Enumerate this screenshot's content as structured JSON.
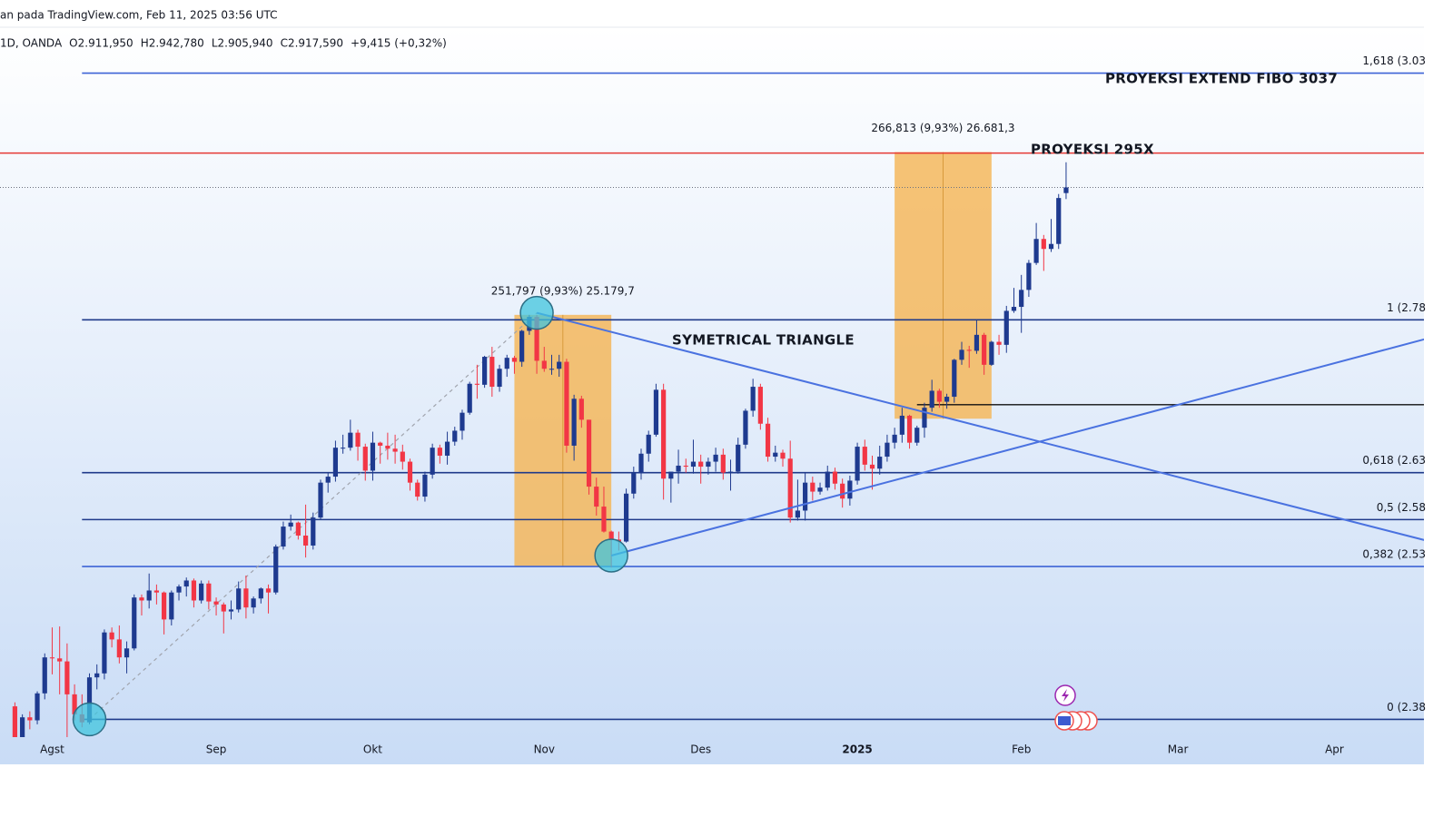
{
  "chart_data": {
    "type": "candlestick",
    "source": "an pada TradingView.com, Feb 11, 2025 03:56 UTC",
    "legend": [
      "1D, OANDA",
      "O2.911,950",
      "H2.942,780",
      "L2.905,940",
      "C2.917,590",
      "+9,415 (+0,32%)"
    ],
    "up_color": "#1e3a8f",
    "down_color": "#f23645",
    "xlim": [
      -2,
      189
    ],
    "ylim": [
      2369,
      3078
    ],
    "xticks": [
      {
        "value": 5,
        "label": "Agst"
      },
      {
        "value": 27,
        "label": "Sep"
      },
      {
        "value": 48,
        "label": "Okt"
      },
      {
        "value": 71,
        "label": "Nov"
      },
      {
        "value": 92,
        "label": "Des"
      },
      {
        "value": 113,
        "label": "2025"
      },
      {
        "value": 135,
        "label": "Feb"
      },
      {
        "value": 156,
        "label": "Mar"
      },
      {
        "value": 177,
        "label": "Apr"
      }
    ],
    "ohlc": [
      [
        2398,
        2402,
        2353,
        2364
      ],
      [
        2364,
        2390,
        2362,
        2387
      ],
      [
        2387,
        2393,
        2375,
        2384
      ],
      [
        2384,
        2413,
        2380,
        2411
      ],
      [
        2411,
        2451,
        2405,
        2447
      ],
      [
        2447,
        2477,
        2430,
        2446
      ],
      [
        2446,
        2478,
        2410,
        2443
      ],
      [
        2443,
        2461,
        2364,
        2410
      ],
      [
        2410,
        2420,
        2384,
        2390
      ],
      [
        2390,
        2410,
        2377,
        2382
      ],
      [
        2382,
        2431,
        2380,
        2427
      ],
      [
        2427,
        2440,
        2415,
        2431
      ],
      [
        2431,
        2475,
        2425,
        2472
      ],
      [
        2472,
        2477,
        2457,
        2465
      ],
      [
        2465,
        2479,
        2441,
        2447
      ],
      [
        2447,
        2463,
        2431,
        2456
      ],
      [
        2456,
        2510,
        2454,
        2507
      ],
      [
        2507,
        2510,
        2489,
        2504
      ],
      [
        2504,
        2531,
        2496,
        2514
      ],
      [
        2514,
        2520,
        2500,
        2512
      ],
      [
        2512,
        2513,
        2470,
        2485
      ],
      [
        2485,
        2514,
        2479,
        2512
      ],
      [
        2512,
        2520,
        2504,
        2518
      ],
      [
        2518,
        2527,
        2508,
        2524
      ],
      [
        2524,
        2526,
        2497,
        2504
      ],
      [
        2504,
        2524,
        2501,
        2521
      ],
      [
        2521,
        2524,
        2495,
        2503
      ],
      [
        2503,
        2507,
        2489,
        2500
      ],
      [
        2500,
        2502,
        2471,
        2493
      ],
      [
        2493,
        2504,
        2485,
        2495
      ],
      [
        2495,
        2523,
        2492,
        2516
      ],
      [
        2516,
        2529,
        2486,
        2497
      ],
      [
        2497,
        2508,
        2491,
        2506
      ],
      [
        2506,
        2517,
        2501,
        2516
      ],
      [
        2516,
        2520,
        2491,
        2512
      ],
      [
        2512,
        2560,
        2510,
        2558
      ],
      [
        2558,
        2583,
        2555,
        2578
      ],
      [
        2578,
        2590,
        2574,
        2582
      ],
      [
        2582,
        2583,
        2565,
        2569
      ],
      [
        2569,
        2600,
        2547,
        2559
      ],
      [
        2559,
        2592,
        2555,
        2587
      ],
      [
        2587,
        2625,
        2585,
        2622
      ],
      [
        2622,
        2632,
        2612,
        2628
      ],
      [
        2628,
        2664,
        2623,
        2657
      ],
      [
        2657,
        2670,
        2651,
        2657
      ],
      [
        2657,
        2685,
        2654,
        2672
      ],
      [
        2672,
        2675,
        2644,
        2658
      ],
      [
        2658,
        2661,
        2624,
        2634
      ],
      [
        2634,
        2673,
        2624,
        2662
      ],
      [
        2662,
        2663,
        2641,
        2659
      ],
      [
        2659,
        2672,
        2645,
        2656
      ],
      [
        2656,
        2670,
        2641,
        2653
      ],
      [
        2653,
        2660,
        2635,
        2643
      ],
      [
        2643,
        2646,
        2614,
        2622
      ],
      [
        2622,
        2625,
        2604,
        2608
      ],
      [
        2608,
        2633,
        2603,
        2630
      ],
      [
        2630,
        2661,
        2626,
        2657
      ],
      [
        2657,
        2660,
        2641,
        2649
      ],
      [
        2649,
        2673,
        2640,
        2663
      ],
      [
        2663,
        2678,
        2659,
        2674
      ],
      [
        2674,
        2695,
        2665,
        2692
      ],
      [
        2692,
        2723,
        2690,
        2721
      ],
      [
        2721,
        2740,
        2706,
        2720
      ],
      [
        2720,
        2749,
        2717,
        2748
      ],
      [
        2748,
        2758,
        2708,
        2718
      ],
      [
        2718,
        2740,
        2713,
        2736
      ],
      [
        2736,
        2750,
        2728,
        2747
      ],
      [
        2747,
        2749,
        2731,
        2743
      ],
      [
        2743,
        2775,
        2738,
        2774
      ],
      [
        2774,
        2790,
        2770,
        2788
      ],
      [
        2788,
        2790,
        2731,
        2744
      ],
      [
        2744,
        2758,
        2733,
        2736
      ],
      [
        2736,
        2750,
        2730,
        2736
      ],
      [
        2736,
        2750,
        2728,
        2743
      ],
      [
        2743,
        2746,
        2652,
        2659
      ],
      [
        2659,
        2710,
        2644,
        2706
      ],
      [
        2706,
        2709,
        2677,
        2685
      ],
      [
        2685,
        2685,
        2610,
        2618
      ],
      [
        2618,
        2627,
        2589,
        2598
      ],
      [
        2598,
        2618,
        2572,
        2573
      ],
      [
        2573,
        2574,
        2537,
        2565
      ],
      [
        2565,
        2573,
        2554,
        2563
      ],
      [
        2563,
        2616,
        2562,
        2611
      ],
      [
        2611,
        2638,
        2606,
        2632
      ],
      [
        2632,
        2656,
        2625,
        2651
      ],
      [
        2651,
        2674,
        2643,
        2670
      ],
      [
        2670,
        2721,
        2668,
        2715
      ],
      [
        2715,
        2721,
        2605,
        2626
      ],
      [
        2626,
        2632,
        2602,
        2633
      ],
      [
        2633,
        2655,
        2621,
        2639
      ],
      [
        2639,
        2646,
        2632,
        2638
      ],
      [
        2638,
        2665,
        2631,
        2643
      ],
      [
        2643,
        2650,
        2621,
        2638
      ],
      [
        2638,
        2647,
        2630,
        2643
      ],
      [
        2643,
        2657,
        2633,
        2650
      ],
      [
        2650,
        2656,
        2625,
        2632
      ],
      [
        2632,
        2645,
        2614,
        2633
      ],
      [
        2633,
        2667,
        2631,
        2660
      ],
      [
        2660,
        2696,
        2656,
        2694
      ],
      [
        2694,
        2726,
        2688,
        2718
      ],
      [
        2718,
        2721,
        2675,
        2681
      ],
      [
        2681,
        2687,
        2643,
        2648
      ],
      [
        2648,
        2659,
        2643,
        2652
      ],
      [
        2652,
        2655,
        2638,
        2646
      ],
      [
        2646,
        2664,
        2582,
        2587
      ],
      [
        2587,
        2625,
        2584,
        2594
      ],
      [
        2594,
        2632,
        2584,
        2622
      ],
      [
        2622,
        2628,
        2604,
        2613
      ],
      [
        2613,
        2622,
        2610,
        2617
      ],
      [
        2617,
        2639,
        2614,
        2633
      ],
      [
        2633,
        2637,
        2615,
        2621
      ],
      [
        2621,
        2626,
        2597,
        2606
      ],
      [
        2606,
        2629,
        2599,
        2624
      ],
      [
        2624,
        2662,
        2620,
        2658
      ],
      [
        2658,
        2665,
        2634,
        2640
      ],
      [
        2640,
        2649,
        2615,
        2636
      ],
      [
        2636,
        2659,
        2630,
        2648
      ],
      [
        2648,
        2670,
        2643,
        2662
      ],
      [
        2662,
        2677,
        2656,
        2670
      ],
      [
        2670,
        2697,
        2662,
        2689
      ],
      [
        2689,
        2690,
        2656,
        2662
      ],
      [
        2662,
        2679,
        2659,
        2677
      ],
      [
        2677,
        2702,
        2667,
        2697
      ],
      [
        2697,
        2725,
        2693,
        2714
      ],
      [
        2714,
        2716,
        2697,
        2703
      ],
      [
        2703,
        2711,
        2696,
        2708
      ],
      [
        2708,
        2746,
        2702,
        2745
      ],
      [
        2745,
        2763,
        2740,
        2755
      ],
      [
        2755,
        2759,
        2737,
        2754
      ],
      [
        2754,
        2785,
        2751,
        2770
      ],
      [
        2770,
        2772,
        2730,
        2740
      ],
      [
        2740,
        2764,
        2739,
        2763
      ],
      [
        2763,
        2770,
        2750,
        2760
      ],
      [
        2760,
        2799,
        2752,
        2794
      ],
      [
        2794,
        2817,
        2792,
        2798
      ],
      [
        2798,
        2830,
        2772,
        2815
      ],
      [
        2815,
        2845,
        2808,
        2842
      ],
      [
        2842,
        2882,
        2840,
        2866
      ],
      [
        2866,
        2870,
        2834,
        2856
      ],
      [
        2856,
        2886,
        2853,
        2861
      ],
      [
        2861,
        2911,
        2856,
        2907
      ],
      [
        2911.95,
        2942.78,
        2905.94,
        2917.59
      ]
    ],
    "fib_x": [
      9,
      189
    ],
    "fib_levels": [
      {
        "value": 3032,
        "label": "1,618 (3.03",
        "color": "#3d63d6"
      },
      {
        "value": 2785,
        "label": "1 (2.78",
        "color": "#1f3a8a"
      },
      {
        "value": 2632,
        "label": "0,618 (2.63",
        "color": "#1f3a8a"
      },
      {
        "value": 2585,
        "label": "0,5 (2.58",
        "color": "#1f3a8a"
      },
      {
        "value": 2538,
        "label": "0,382 (2.53",
        "color": "#3d63d6"
      },
      {
        "value": 2385,
        "label": "0 (2.38",
        "color": "#1f3a8a"
      }
    ],
    "target_line": {
      "value": 2952,
      "color": "#e53935"
    },
    "support_line": {
      "x": [
        121,
        189
      ],
      "y": 2700,
      "color": "#111111"
    },
    "triangle_lines": [
      {
        "x": [
          70,
          189.3
        ],
        "y": [
          2792,
          2564
        ]
      },
      {
        "x": [
          80,
          189.3
        ],
        "y": [
          2549,
          2766
        ]
      }
    ],
    "triangle_color": "#4a72e0",
    "trend_dash": {
      "x": [
        10,
        70
      ],
      "y": [
        2385,
        2792
      ]
    },
    "pivots": [
      {
        "x": 10,
        "y": 2385
      },
      {
        "x": 70,
        "y": 2792
      },
      {
        "x": 80,
        "y": 2549
      }
    ],
    "measure_boxes": [
      {
        "x": [
          67,
          80
        ],
        "y": [
          2538,
          2790
        ],
        "label": "251,797 (9,93%) 25.179,7"
      },
      {
        "x": [
          118,
          131
        ],
        "y": [
          2686,
          2953
        ],
        "label": "266,813 (9,93%) 26.681,3"
      }
    ],
    "annotations": [
      {
        "text": "PROYEKSI EXTEND FIBO 3037"
      },
      {
        "text": "PROYEKSI 295X"
      },
      {
        "text": "SYMETRICAL TRIANGLE"
      }
    ]
  }
}
